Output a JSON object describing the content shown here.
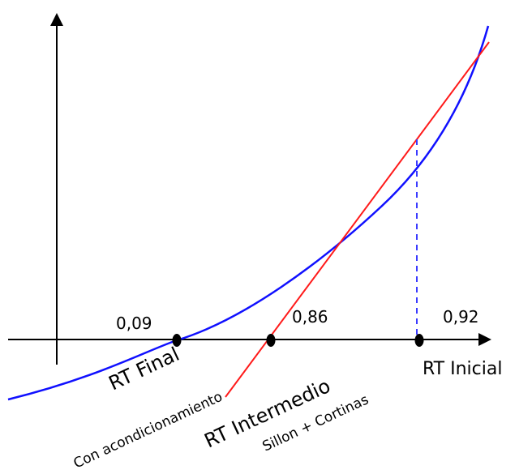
{
  "colors": {
    "axis": "#000000",
    "blue_curve": "#1010ff",
    "red_line": "#ff1a1a",
    "dashed_line": "#3b3bff",
    "point": "#000000"
  },
  "values": {
    "final": "0,09",
    "intermediate": "0,86",
    "initial": "0,92"
  },
  "labels": {
    "rt_final": "RT Final",
    "rt_final_sub": "Con acondicionamiento",
    "rt_intermediate": "RT Intermedio",
    "rt_intermediate_sub": "Sillon + Cortinas",
    "rt_initial": "RT Inicial"
  }
}
